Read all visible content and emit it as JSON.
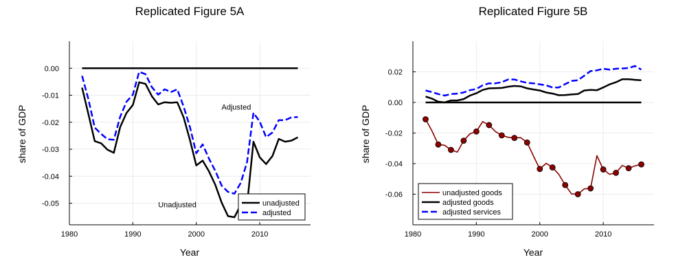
{
  "chart_data": [
    {
      "type": "line",
      "title": "Replicated Figure 5A",
      "xlabel": "Year",
      "ylabel": "share of GDP",
      "xlim": [
        1980,
        2018
      ],
      "ylim": [
        -0.058,
        0.01
      ],
      "xticks": [
        "1980",
        "1990",
        "2000",
        "2010"
      ],
      "yticks": [
        "0.00",
        "-0.01",
        "-0.02",
        "-0.03",
        "-0.04",
        "-0.05"
      ],
      "grid": true,
      "legend_position": "bottom-right",
      "annotations": [
        {
          "text": "Adjusted",
          "x": 2006.3,
          "y": -0.0143
        },
        {
          "text": "Unadjusted",
          "x": 1997.0,
          "y": -0.0505
        }
      ],
      "x": [
        1982,
        1983,
        1984,
        1985,
        1986,
        1987,
        1988,
        1989,
        1990,
        1991,
        1992,
        1993,
        1994,
        1995,
        1996,
        1997,
        1998,
        1999,
        2000,
        2001,
        2002,
        2003,
        2004,
        2005,
        2006,
        2007,
        2008,
        2009,
        2010,
        2011,
        2012,
        2013,
        2014,
        2015,
        2016
      ],
      "series": [
        {
          "name": "zero",
          "color": "#000000",
          "dash": "solid",
          "values": [
            0,
            0,
            0,
            0,
            0,
            0,
            0,
            0,
            0,
            0,
            0,
            0,
            0,
            0,
            0,
            0,
            0,
            0,
            0,
            0,
            0,
            0,
            0,
            0,
            0,
            0,
            0,
            0,
            0,
            0,
            0,
            0,
            0,
            0,
            0
          ]
        },
        {
          "name": "unadjusted",
          "color": "#000000",
          "dash": "solid",
          "values": [
            -0.0072,
            -0.017,
            -0.027,
            -0.0278,
            -0.0302,
            -0.0313,
            -0.0218,
            -0.0166,
            -0.0136,
            -0.0052,
            -0.0058,
            -0.0104,
            -0.0134,
            -0.0126,
            -0.0128,
            -0.0126,
            -0.0182,
            -0.0266,
            -0.036,
            -0.0342,
            -0.0382,
            -0.0432,
            -0.0498,
            -0.0548,
            -0.0552,
            -0.0506,
            -0.0508,
            -0.0272,
            -0.033,
            -0.0355,
            -0.0325,
            -0.0262,
            -0.0272,
            -0.0268,
            -0.0256
          ]
        },
        {
          "name": "adjusted",
          "color": "#0000ff",
          "dash": "dashed",
          "values": [
            -0.0028,
            -0.0115,
            -0.022,
            -0.0243,
            -0.0263,
            -0.0265,
            -0.018,
            -0.0124,
            -0.0098,
            -0.0013,
            -0.0022,
            -0.007,
            -0.0098,
            -0.0078,
            -0.0088,
            -0.0078,
            -0.0142,
            -0.0218,
            -0.0315,
            -0.0282,
            -0.0335,
            -0.038,
            -0.0435,
            -0.0458,
            -0.0465,
            -0.0425,
            -0.0348,
            -0.0165,
            -0.0198,
            -0.0255,
            -0.0238,
            -0.0192,
            -0.0192,
            -0.0182,
            -0.0181
          ]
        }
      ]
    },
    {
      "type": "line",
      "title": "Replicated Figure 5B",
      "xlabel": "Year",
      "ylabel": "share of GDP",
      "xlim": [
        1980,
        2018
      ],
      "ylim": [
        -0.08,
        0.04
      ],
      "xticks": [
        "1980",
        "1990",
        "2000",
        "2010"
      ],
      "yticks": [
        "0.02",
        "0.00",
        "-0.02",
        "-0.04",
        "-0.06"
      ],
      "grid": true,
      "legend_position": "bottom-left",
      "x": [
        1982,
        1983,
        1984,
        1985,
        1986,
        1987,
        1988,
        1989,
        1990,
        1991,
        1992,
        1993,
        1994,
        1995,
        1996,
        1997,
        1998,
        1999,
        2000,
        2001,
        2002,
        2003,
        2004,
        2005,
        2006,
        2007,
        2008,
        2009,
        2010,
        2011,
        2012,
        2013,
        2014,
        2015,
        2016
      ],
      "series": [
        {
          "name": "zero",
          "color": "#000000",
          "dash": "solid",
          "values": [
            0,
            0,
            0,
            0,
            0,
            0,
            0,
            0,
            0,
            0,
            0,
            0,
            0,
            0,
            0,
            0,
            0,
            0,
            0,
            0,
            0,
            0,
            0,
            0,
            0,
            0,
            0,
            0,
            0,
            0,
            0,
            0,
            0,
            0,
            0
          ]
        },
        {
          "name": "unadjusted goods",
          "color": "#8b0000",
          "dash": "solid",
          "markers": true,
          "values": [
            -0.011,
            -0.0185,
            -0.0275,
            -0.028,
            -0.031,
            -0.0325,
            -0.025,
            -0.0205,
            -0.019,
            -0.0125,
            -0.0148,
            -0.019,
            -0.0215,
            -0.0228,
            -0.0232,
            -0.023,
            -0.0262,
            -0.035,
            -0.0435,
            -0.0398,
            -0.0425,
            -0.047,
            -0.054,
            -0.0598,
            -0.06,
            -0.0565,
            -0.0562,
            -0.0348,
            -0.0438,
            -0.047,
            -0.046,
            -0.0412,
            -0.043,
            -0.0415,
            -0.0405
          ]
        },
        {
          "name": "adjusted goods",
          "color": "#000000",
          "dash": "solid",
          "values": [
            0.0038,
            0.0025,
            0.0005,
            0.0,
            0.0013,
            0.0013,
            0.0022,
            0.0045,
            0.006,
            0.0082,
            0.0092,
            0.0093,
            0.0095,
            0.0103,
            0.0108,
            0.0105,
            0.0092,
            0.0085,
            0.0078,
            0.0065,
            0.0058,
            0.0047,
            0.0048,
            0.0052,
            0.0055,
            0.0078,
            0.0082,
            0.008,
            0.0098,
            0.0118,
            0.0132,
            0.0152,
            0.0152,
            0.0148,
            0.0145
          ]
        },
        {
          "name": "adjusted services",
          "color": "#0000ff",
          "dash": "dashed",
          "values": [
            0.0078,
            0.0068,
            0.0055,
            0.0045,
            0.0055,
            0.0058,
            0.0065,
            0.008,
            0.0088,
            0.0112,
            0.0125,
            0.0125,
            0.0132,
            0.015,
            0.015,
            0.0138,
            0.0128,
            0.0125,
            0.0118,
            0.0112,
            0.0098,
            0.0098,
            0.012,
            0.014,
            0.0145,
            0.0175,
            0.0205,
            0.021,
            0.022,
            0.0215,
            0.022,
            0.0222,
            0.0225,
            0.0238,
            0.0215
          ]
        }
      ]
    }
  ]
}
